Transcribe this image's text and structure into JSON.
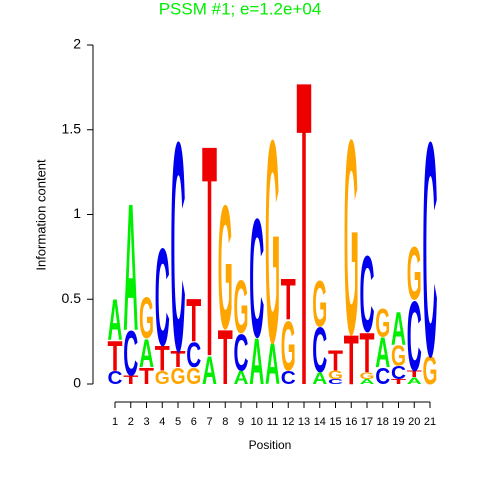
{
  "chart_data": {
    "type": "logo",
    "title": "PSSM #1; e=1.2e+04",
    "title_color": "#00ee00",
    "x_label": "Position",
    "y_label": "Information content",
    "categories": [
      1,
      2,
      3,
      4,
      5,
      6,
      7,
      8,
      9,
      10,
      11,
      12,
      13,
      14,
      15,
      16,
      17,
      18,
      19,
      20,
      21
    ],
    "ylim": [
      0,
      2
    ],
    "yticks": [
      0,
      0.5,
      1,
      1.5,
      2
    ],
    "colors": {
      "A": "#00ee00",
      "C": "#0000ee",
      "G": "#ffa500",
      "T": "#ee0000"
    },
    "stacks": [
      [
        {
          "letter": "C",
          "value": 0.08
        },
        {
          "letter": "T",
          "value": 0.18
        },
        {
          "letter": "A",
          "value": 0.25
        }
      ],
      [
        {
          "letter": "T",
          "value": 0.05
        },
        {
          "letter": "C",
          "value": 0.27
        },
        {
          "letter": "A",
          "value": 0.77
        }
      ],
      [
        {
          "letter": "T",
          "value": 0.1
        },
        {
          "letter": "A",
          "value": 0.17
        },
        {
          "letter": "G",
          "value": 0.25
        }
      ],
      [
        {
          "letter": "G",
          "value": 0.08
        },
        {
          "letter": "T",
          "value": 0.15
        },
        {
          "letter": "C",
          "value": 0.59
        }
      ],
      [
        {
          "letter": "G",
          "value": 0.1
        },
        {
          "letter": "T",
          "value": 0.1
        },
        {
          "letter": "C",
          "value": 1.27
        }
      ],
      [
        {
          "letter": "G",
          "value": 0.1
        },
        {
          "letter": "C",
          "value": 0.15
        },
        {
          "letter": "T",
          "value": 0.26
        }
      ],
      [
        {
          "letter": "A",
          "value": 0.17
        },
        {
          "letter": "T",
          "value": 1.28
        }
      ],
      [
        {
          "letter": "T",
          "value": 0.33
        },
        {
          "letter": "G",
          "value": 0.75
        }
      ],
      [
        {
          "letter": "A",
          "value": 0.08
        },
        {
          "letter": "C",
          "value": 0.22
        },
        {
          "letter": "G",
          "value": 0.32
        }
      ],
      [
        {
          "letter": "A",
          "value": 0.28
        },
        {
          "letter": "C",
          "value": 0.72
        }
      ],
      [
        {
          "letter": "A",
          "value": 0.25
        },
        {
          "letter": "G",
          "value": 1.23
        }
      ],
      [
        {
          "letter": "C",
          "value": 0.08
        },
        {
          "letter": "G",
          "value": 0.3
        },
        {
          "letter": "T",
          "value": 0.25
        }
      ],
      [
        {
          "letter": "T",
          "value": 1.85
        }
      ],
      [
        {
          "letter": "A",
          "value": 0.07
        },
        {
          "letter": "C",
          "value": 0.27
        },
        {
          "letter": "G",
          "value": 0.28
        }
      ],
      [
        {
          "letter": "C",
          "value": 0.03
        },
        {
          "letter": "G",
          "value": 0.05
        },
        {
          "letter": "T",
          "value": 0.12
        }
      ],
      [
        {
          "letter": "T",
          "value": 0.3
        },
        {
          "letter": "G",
          "value": 1.18
        }
      ],
      [
        {
          "letter": "A",
          "value": 0.03
        },
        {
          "letter": "G",
          "value": 0.04
        },
        {
          "letter": "T",
          "value": 0.24
        },
        {
          "letter": "C",
          "value": 0.46
        }
      ],
      [
        {
          "letter": "C",
          "value": 0.1
        },
        {
          "letter": "A",
          "value": 0.18
        },
        {
          "letter": "G",
          "value": 0.17
        }
      ],
      [
        {
          "letter": "T",
          "value": 0.03
        },
        {
          "letter": "C",
          "value": 0.08
        },
        {
          "letter": "G",
          "value": 0.12
        },
        {
          "letter": "A",
          "value": 0.2
        }
      ],
      [
        {
          "letter": "A",
          "value": 0.04
        },
        {
          "letter": "T",
          "value": 0.04
        },
        {
          "letter": "C",
          "value": 0.42
        },
        {
          "letter": "G",
          "value": 0.32
        }
      ],
      [
        {
          "letter": "G",
          "value": 0.17
        },
        {
          "letter": "C",
          "value": 1.3
        }
      ]
    ]
  }
}
